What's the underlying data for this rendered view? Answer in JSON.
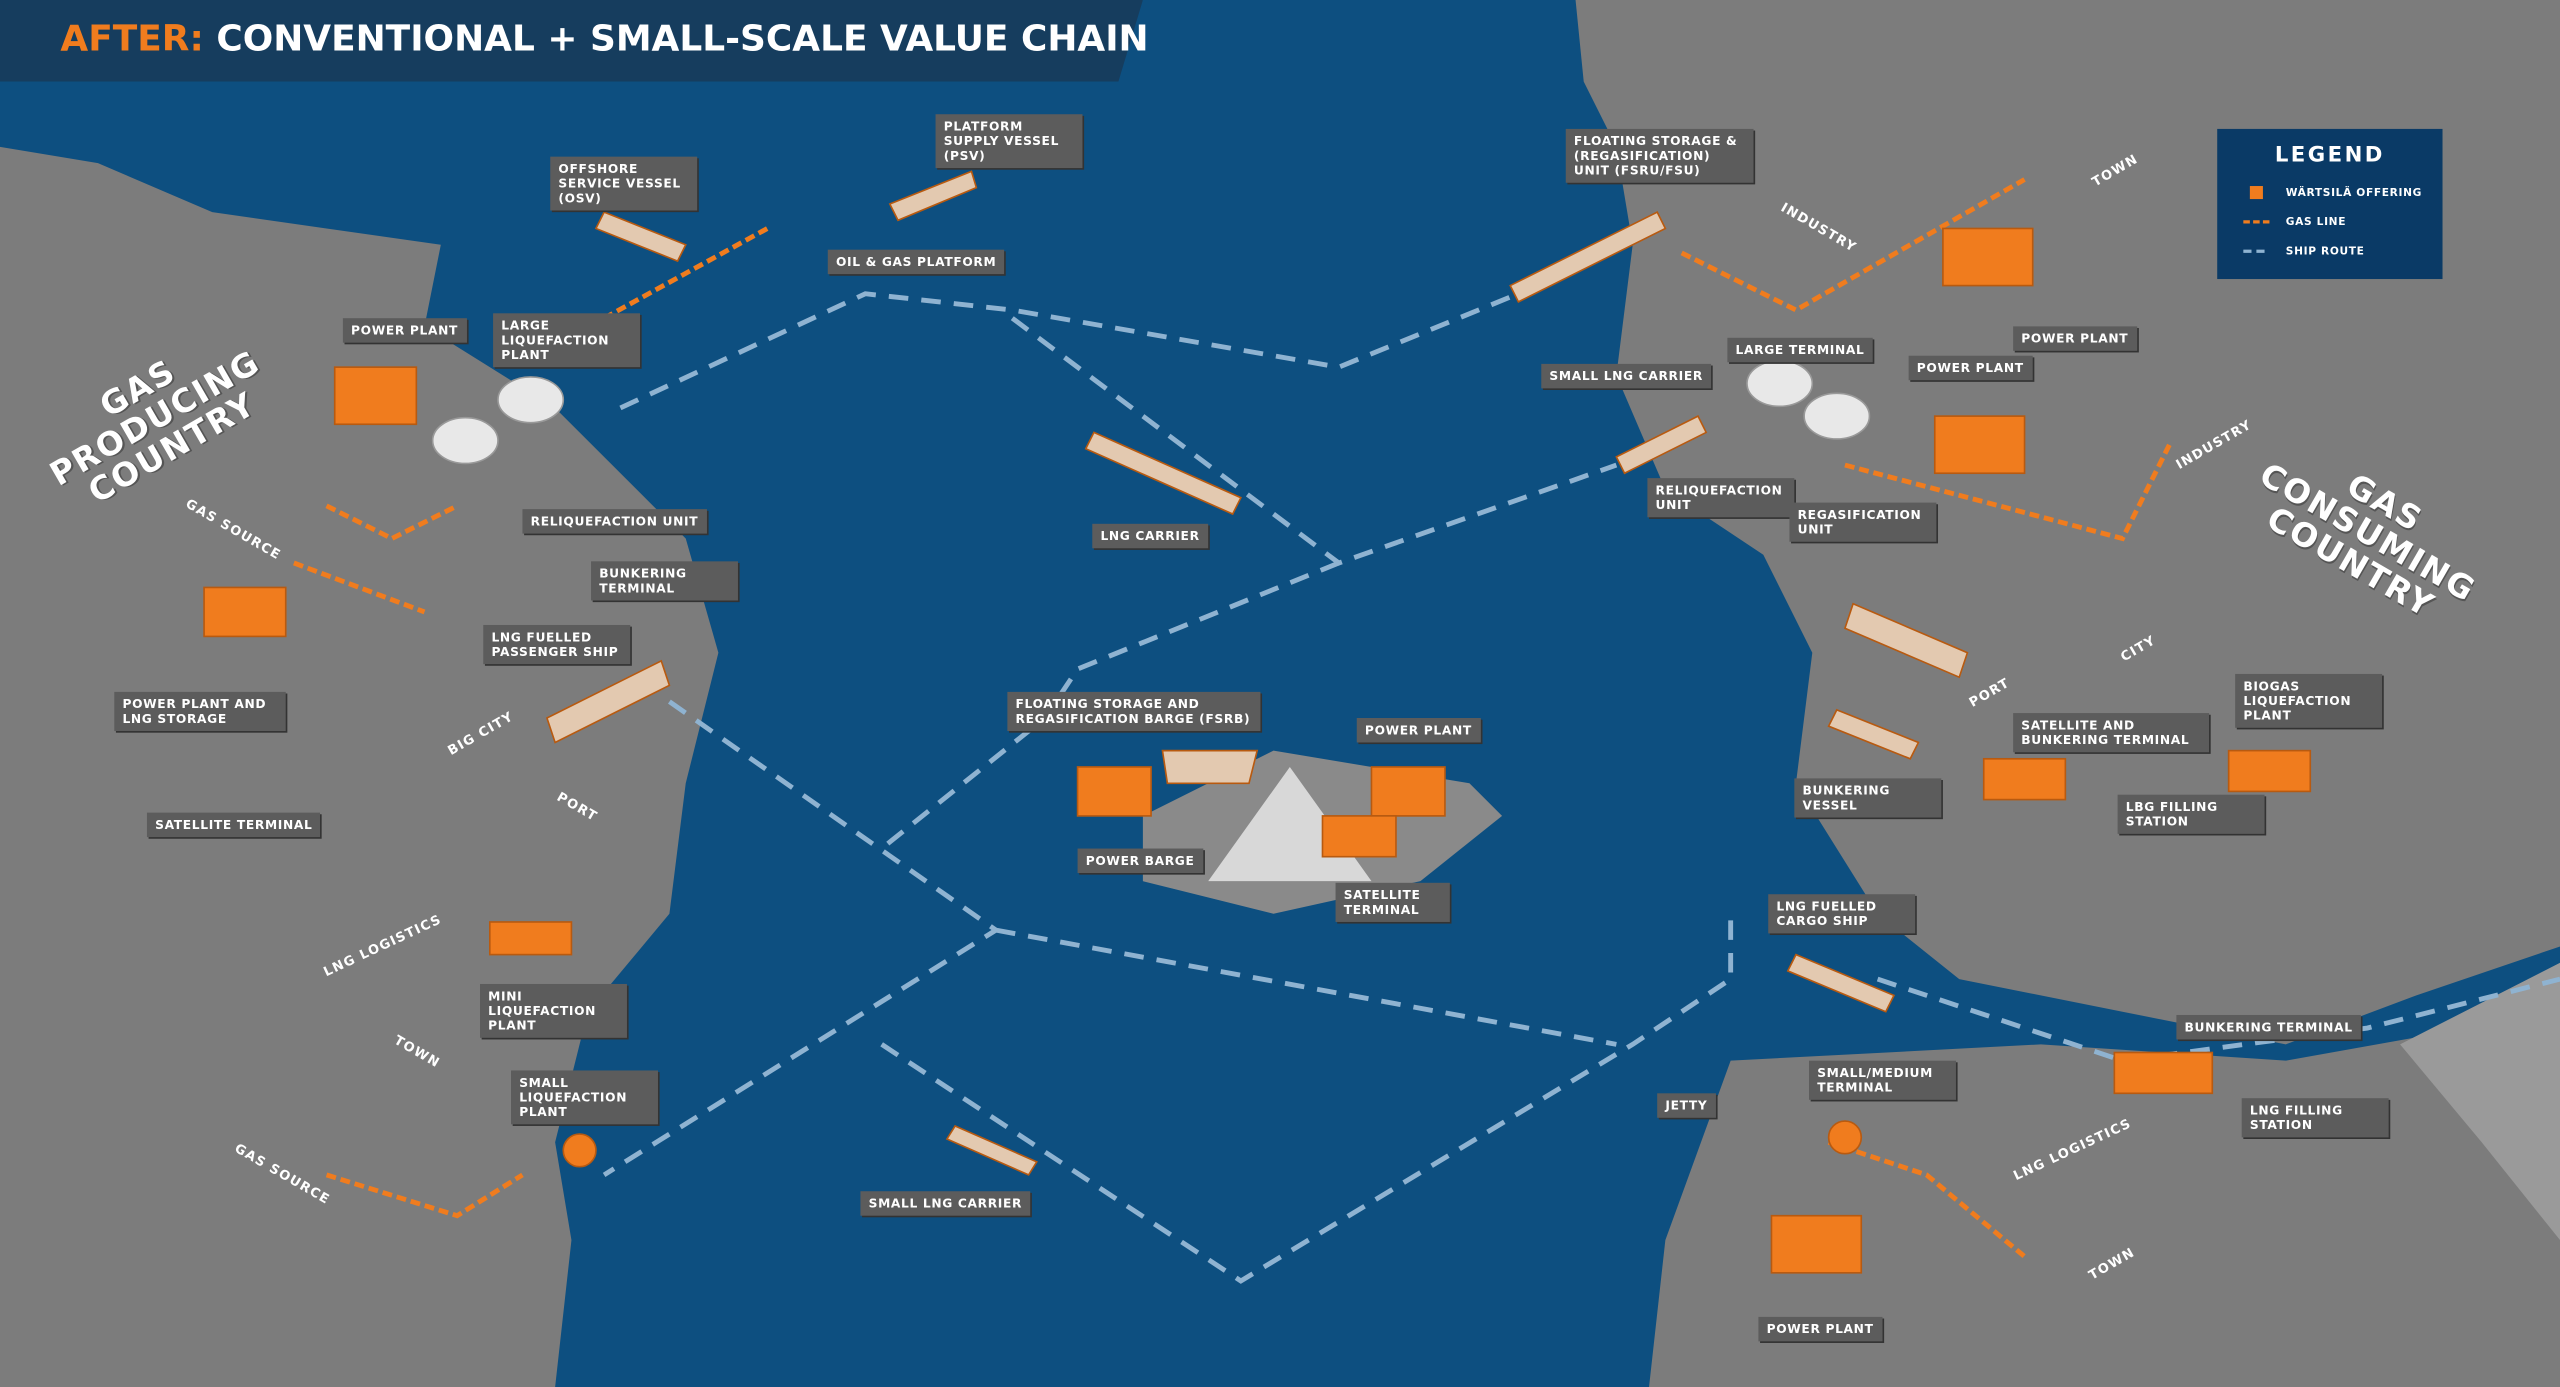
{
  "header": {
    "prefix": "AFTER:",
    "title": "CONVENTIONAL + SMALL-SCALE VALUE CHAIN"
  },
  "legend": {
    "title": "LEGEND",
    "items": [
      "WÄRTSILÄ OFFERING",
      "GAS LINE",
      "SHIP ROUTE"
    ]
  },
  "regions": [
    "GAS PRODUCING COUNTRY",
    "GAS CONSUMING COUNTRY"
  ],
  "area_labels": [
    "GAS SOURCE",
    "BIG CITY",
    "PORT",
    "LNG LOGISTICS",
    "TOWN",
    "GAS SOURCE",
    "INDUSTRY",
    "TOWN",
    "INDUSTRY",
    "CITY",
    "PORT",
    "LNG LOGISTICS",
    "TOWN"
  ],
  "labels": [
    "OFFSHORE SERVICE VESSEL (OSV)",
    "PLATFORM SUPPLY VESSEL (PSV)",
    "OIL & GAS PLATFORM",
    "POWER PLANT",
    "LARGE LIQUEFACTION PLANT",
    "RELIQUEFACTION UNIT",
    "BUNKERING TERMINAL",
    "LNG FUELLED PASSENGER SHIP",
    "POWER PLANT AND LNG STORAGE",
    "SATELLITE TERMINAL",
    "MINI LIQUEFACTION PLANT",
    "SMALL LIQUEFACTION PLANT",
    "LNG CARRIER",
    "FLOATING STORAGE AND REGASIFICATION BARGE (FSRB)",
    "POWER PLANT",
    "POWER BARGE",
    "SATELLITE TERMINAL",
    "SMALL LNG CARRIER",
    "FLOATING STORAGE & (REGASIFICATION) UNIT (FSRU/FSU)",
    "SMALL LNG CARRIER",
    "LARGE TERMINAL",
    "POWER PLANT",
    "POWER PLANT",
    "RELIQUEFACTION UNIT",
    "REGASIFICATION UNIT",
    "BIOGAS LIQUEFACTION PLANT",
    "SATELLITE AND BUNKERING TERMINAL",
    "BUNKERING VESSEL",
    "LBG FILLING STATION",
    "LNG FUELLED CARGO SHIP",
    "BUNKERING TERMINAL",
    "SMALL/MEDIUM TERMINAL",
    "JETTY",
    "LNG FILLING STATION",
    "POWER PLANT"
  ]
}
